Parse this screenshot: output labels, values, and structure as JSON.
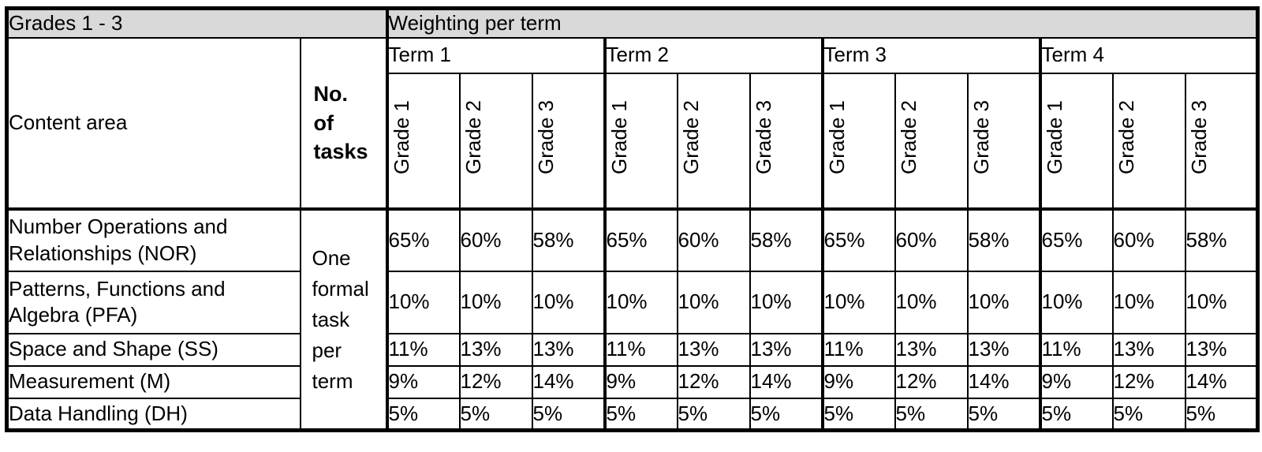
{
  "table": {
    "top_left_header": "Grades 1 - 3",
    "weighting_header": "Weighting per term",
    "content_area_header": "Content area",
    "tasks_header": "No. of tasks",
    "tasks_note": "One formal task per term",
    "terms": [
      {
        "label": "Term 1",
        "grades": [
          "Grade 1",
          "Grade 2",
          "Grade 3"
        ]
      },
      {
        "label": "Term 2",
        "grades": [
          "Grade 1",
          "Grade 2",
          "Grade 3"
        ]
      },
      {
        "label": "Term 3",
        "grades": [
          "Grade 1",
          "Grade 2",
          "Grade 3"
        ]
      },
      {
        "label": "Term 4",
        "grades": [
          "Grade 1",
          "Grade 2",
          "Grade 3"
        ]
      }
    ],
    "rows": [
      {
        "label": "Number Operations and Relationships (NOR)",
        "values": [
          "65%",
          "60%",
          "58%",
          "65%",
          "60%",
          "58%",
          "65%",
          "60%",
          "58%",
          "65%",
          "60%",
          "58%"
        ]
      },
      {
        "label": "Patterns, Functions and Algebra (PFA)",
        "values": [
          "10%",
          "10%",
          "10%",
          "10%",
          "10%",
          "10%",
          "10%",
          "10%",
          "10%",
          "10%",
          "10%",
          "10%"
        ]
      },
      {
        "label": "Space and Shape (SS)",
        "values": [
          "11%",
          "13%",
          "13%",
          "11%",
          "13%",
          "13%",
          "11%",
          "13%",
          "13%",
          "11%",
          "13%",
          "13%"
        ]
      },
      {
        "label": "Measurement (M)",
        "values": [
          "9%",
          "12%",
          "14%",
          "9%",
          "12%",
          "14%",
          "9%",
          "12%",
          "14%",
          "9%",
          "12%",
          "14%"
        ]
      },
      {
        "label": "Data Handling (DH)",
        "values": [
          "5%",
          "5%",
          "5%",
          "5%",
          "5%",
          "5%",
          "5%",
          "5%",
          "5%",
          "5%",
          "5%",
          "5%"
        ]
      }
    ],
    "colors": {
      "header_band_bg": "#d9d9d9",
      "border": "#000000"
    }
  }
}
